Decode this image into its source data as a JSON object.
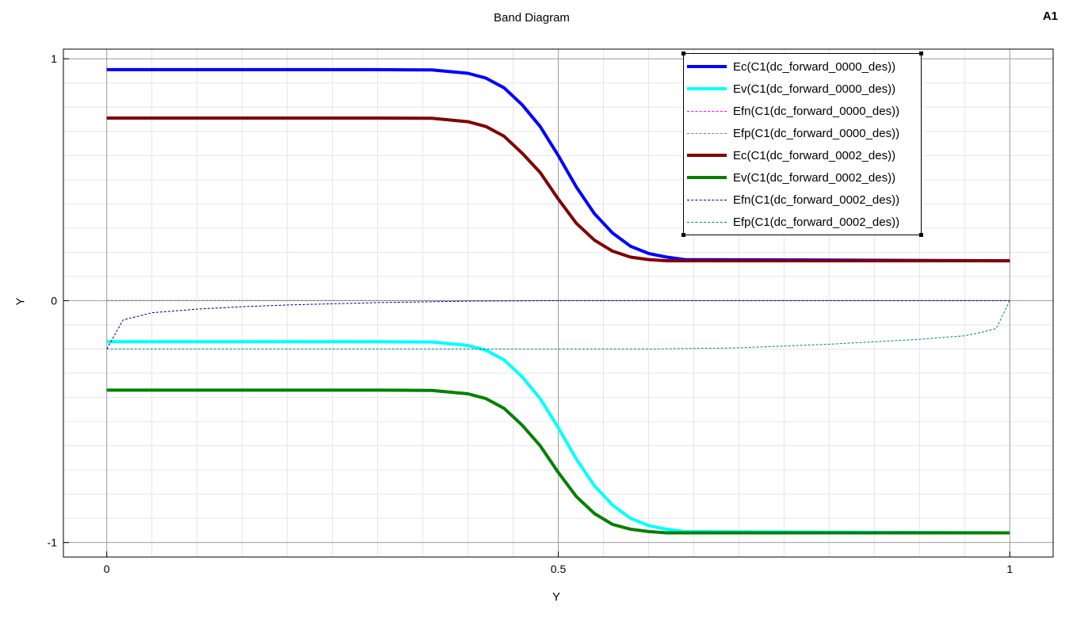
{
  "corner_label": "A1",
  "chart_data": {
    "type": "line",
    "title": "Band Diagram",
    "xlabel": "Y",
    "ylabel": "Y",
    "xlim": [
      -0.048,
      1.048
    ],
    "ylim": [
      -1.06,
      1.04
    ],
    "xticks": [
      "0",
      "0.5",
      "1"
    ],
    "yticks": [
      "1",
      "0",
      "-1"
    ],
    "grid": true,
    "legend_position": "top-right",
    "series": [
      {
        "name": "Ec(C1(dc_forward_0000_des))",
        "color": "#0000ff",
        "width": 4,
        "dashed": false,
        "x": [
          0,
          0.3,
          0.36,
          0.4,
          0.42,
          0.44,
          0.46,
          0.48,
          0.5,
          0.52,
          0.54,
          0.56,
          0.58,
          0.6,
          0.62,
          0.64,
          1
        ],
        "y": [
          0.955,
          0.955,
          0.954,
          0.94,
          0.92,
          0.88,
          0.81,
          0.72,
          0.6,
          0.47,
          0.36,
          0.28,
          0.225,
          0.195,
          0.18,
          0.17,
          0.165
        ]
      },
      {
        "name": "Ev(C1(dc_forward_0000_des))",
        "color": "#00ffff",
        "width": 4,
        "dashed": false,
        "x": [
          0,
          0.3,
          0.36,
          0.4,
          0.42,
          0.44,
          0.46,
          0.48,
          0.5,
          0.52,
          0.54,
          0.56,
          0.58,
          0.6,
          0.62,
          0.64,
          1
        ],
        "y": [
          -0.17,
          -0.17,
          -0.171,
          -0.185,
          -0.205,
          -0.245,
          -0.315,
          -0.405,
          -0.525,
          -0.655,
          -0.765,
          -0.845,
          -0.9,
          -0.93,
          -0.945,
          -0.955,
          -0.96
        ]
      },
      {
        "name": "Efn(C1(dc_forward_0000_des))",
        "color": "#ff00ff",
        "width": 1,
        "dashed": true,
        "x": [
          0,
          1
        ],
        "y": [
          0.0,
          0.0
        ]
      },
      {
        "name": "Efp(C1(dc_forward_0000_des))",
        "color": "#808080",
        "width": 1,
        "dashed": true,
        "x": [
          0,
          1
        ],
        "y": [
          0.0,
          0.0
        ]
      },
      {
        "name": "Ec(C1(dc_forward_0002_des))",
        "color": "#800000",
        "width": 4,
        "dashed": false,
        "x": [
          0,
          0.3,
          0.36,
          0.4,
          0.42,
          0.44,
          0.46,
          0.48,
          0.5,
          0.52,
          0.54,
          0.56,
          0.58,
          0.6,
          0.62,
          1
        ],
        "y": [
          0.755,
          0.755,
          0.754,
          0.74,
          0.72,
          0.68,
          0.61,
          0.53,
          0.42,
          0.32,
          0.25,
          0.205,
          0.18,
          0.17,
          0.165,
          0.165
        ]
      },
      {
        "name": "Ev(C1(dc_forward_0002_des))",
        "color": "#008000",
        "width": 4,
        "dashed": false,
        "x": [
          0,
          0.3,
          0.36,
          0.4,
          0.42,
          0.44,
          0.46,
          0.48,
          0.5,
          0.52,
          0.54,
          0.56,
          0.58,
          0.6,
          0.62,
          1
        ],
        "y": [
          -0.37,
          -0.37,
          -0.371,
          -0.385,
          -0.405,
          -0.445,
          -0.515,
          -0.6,
          -0.71,
          -0.81,
          -0.88,
          -0.925,
          -0.945,
          -0.955,
          -0.96,
          -0.96
        ]
      },
      {
        "name": "Efn(C1(dc_forward_0002_des))",
        "color": "#000080",
        "width": 1,
        "dashed": true,
        "x": [
          0,
          0.018,
          0.05,
          0.1,
          0.15,
          0.2,
          0.3,
          0.4,
          0.5,
          1
        ],
        "y": [
          -0.2,
          -0.08,
          -0.05,
          -0.035,
          -0.025,
          -0.018,
          -0.008,
          -0.002,
          0.0,
          0.0
        ]
      },
      {
        "name": "Efp(C1(dc_forward_0002_des))",
        "color": "#008080",
        "width": 1,
        "dashed": true,
        "x": [
          0,
          0.3,
          0.5,
          0.6,
          0.7,
          0.8,
          0.9,
          0.95,
          0.97,
          0.985,
          1
        ],
        "y": [
          -0.2,
          -0.2,
          -0.2,
          -0.2,
          -0.195,
          -0.18,
          -0.16,
          -0.145,
          -0.13,
          -0.115,
          0.0
        ]
      }
    ]
  }
}
